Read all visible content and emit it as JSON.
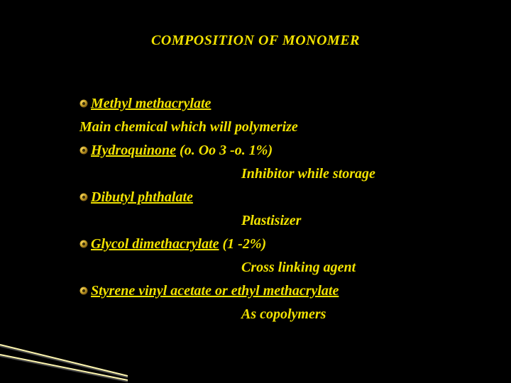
{
  "colors": {
    "background": "#000000",
    "text_yellow": "#f2e200",
    "bullet_outer_1": "#7a5a15",
    "bullet_outer_2": "#c9a227",
    "bullet_outer_3": "#ffe066",
    "bullet_inner": "#3a2e0a",
    "corner_line_light": "#fff7b0",
    "corner_line_shadow": "#4a4a4a"
  },
  "typography": {
    "family": "Georgia, 'Times New Roman', serif",
    "title_fontsize": 20,
    "body_fontsize": 20,
    "weight": "bold",
    "style": "italic"
  },
  "title": "COMPOSITION OF MONOMER",
  "items": [
    {
      "name": "Methyl methacrylate",
      "secondary": "Main chemical which will polymerize",
      "secondary_inline": true
    },
    {
      "name": "Hydroquinone",
      "pct": "(o. Oo 3 -o. 1%)",
      "secondary": "Inhibitor while storage"
    },
    {
      "name": "Dibutyl phthalate",
      "secondary": "Plastisizer"
    },
    {
      "name": "Glycol dimethacrylate",
      "pct": "(1 -2%)",
      "secondary": "Cross linking agent"
    },
    {
      "name": "Styrene vinyl acetate or ethyl methacrylate",
      "secondary": "As copolymers"
    }
  ]
}
